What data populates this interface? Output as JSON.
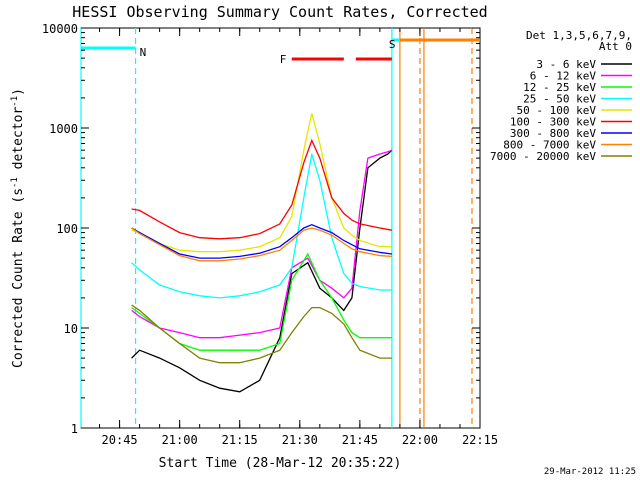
{
  "chart_data": {
    "type": "line",
    "title": "HESSI Observing Summary Count Rates, Corrected",
    "xlabel": "Start Time (28-Mar-12 20:35:22)",
    "ylabel": "Corrected Count Rate (s⁻¹ detector⁻¹)",
    "ylabel_main": "Corrected Count Rate (s",
    "ylabel_exp1": "-1",
    "ylabel_mid": " detector",
    "ylabel_exp2": "-1",
    "ylabel_end": ")",
    "yscale": "log",
    "ylim": [
      1,
      10000
    ],
    "xlim": [
      "20:35:22",
      "22:15:00"
    ],
    "x_ticks": [
      "20:45",
      "21:00",
      "21:15",
      "21:30",
      "21:45",
      "22:00",
      "22:15"
    ],
    "y_ticks": [
      "1",
      "10",
      "100",
      "1000",
      "10000"
    ],
    "legend_header": [
      "Det 1,3,5,6,7,9,",
      "Att 0"
    ],
    "timestamp": "29-Mar-2012 11:25",
    "grid": false,
    "legend_position": "right",
    "series": [
      {
        "name": "3 - 6 keV",
        "color": "#000000",
        "x": [
          "20:48",
          "20:50",
          "20:55",
          "21:00",
          "21:05",
          "21:10",
          "21:15",
          "21:20",
          "21:25",
          "21:28",
          "21:32",
          "21:35",
          "21:38",
          "21:41",
          "21:43",
          "21:45",
          "21:47",
          "21:50",
          "21:52",
          "21:53"
        ],
        "values": [
          5,
          6,
          5,
          4,
          3,
          2.5,
          2.3,
          3,
          8,
          35,
          45,
          25,
          20,
          15,
          20,
          100,
          400,
          500,
          550,
          600
        ]
      },
      {
        "name": "6 - 12 keV",
        "color": "#ff00ff",
        "x": [
          "20:48",
          "20:50",
          "20:55",
          "21:00",
          "21:05",
          "21:10",
          "21:15",
          "21:20",
          "21:25",
          "21:28",
          "21:32",
          "21:35",
          "21:38",
          "21:41",
          "21:43",
          "21:45",
          "21:47",
          "21:50",
          "21:52",
          "21:53"
        ],
        "values": [
          15,
          13,
          10,
          9,
          8,
          8,
          8.5,
          9,
          10,
          40,
          50,
          30,
          25,
          20,
          25,
          150,
          500,
          550,
          580,
          600
        ]
      },
      {
        "name": "12 - 25 keV",
        "color": "#00ff00",
        "x": [
          "20:48",
          "20:50",
          "20:55",
          "21:00",
          "21:05",
          "21:10",
          "21:15",
          "21:20",
          "21:25",
          "21:28",
          "21:32",
          "21:35",
          "21:38",
          "21:41",
          "21:43",
          "21:45",
          "21:50",
          "21:53"
        ],
        "values": [
          16,
          14,
          10,
          7,
          6,
          6,
          6,
          6,
          7,
          30,
          55,
          30,
          20,
          12,
          9,
          8,
          8,
          8
        ]
      },
      {
        "name": "25 - 50 keV",
        "color": "#00ffff",
        "x": [
          "20:48",
          "20:50",
          "20:55",
          "21:00",
          "21:05",
          "21:10",
          "21:15",
          "21:20",
          "21:25",
          "21:28",
          "21:31",
          "21:33",
          "21:35",
          "21:38",
          "21:41",
          "21:43",
          "21:45",
          "21:50",
          "21:53"
        ],
        "values": [
          45,
          38,
          27,
          23,
          21,
          20,
          21,
          23,
          27,
          40,
          200,
          550,
          300,
          80,
          35,
          28,
          26,
          24,
          24
        ]
      },
      {
        "name": "50 - 100 keV",
        "color": "#e6e600",
        "x": [
          "20:48",
          "20:50",
          "20:55",
          "21:00",
          "21:05",
          "21:10",
          "21:15",
          "21:20",
          "21:25",
          "21:28",
          "21:31",
          "21:33",
          "21:35",
          "21:38",
          "21:41",
          "21:43",
          "21:45",
          "21:50",
          "21:53"
        ],
        "values": [
          95,
          90,
          70,
          60,
          58,
          58,
          60,
          65,
          80,
          130,
          600,
          1400,
          700,
          200,
          100,
          85,
          75,
          65,
          65
        ]
      },
      {
        "name": "100 - 300 keV",
        "color": "#ff0000",
        "x": [
          "20:48",
          "20:50",
          "20:55",
          "21:00",
          "21:05",
          "21:10",
          "21:15",
          "21:20",
          "21:25",
          "21:28",
          "21:31",
          "21:33",
          "21:35",
          "21:38",
          "21:41",
          "21:43",
          "21:45",
          "21:50",
          "21:53"
        ],
        "values": [
          155,
          150,
          115,
          90,
          80,
          78,
          80,
          88,
          110,
          170,
          450,
          750,
          500,
          200,
          140,
          120,
          110,
          100,
          95
        ]
      },
      {
        "name": "300 - 800 keV",
        "color": "#0000ff",
        "x": [
          "20:48",
          "20:50",
          "20:55",
          "21:00",
          "21:05",
          "21:10",
          "21:15",
          "21:20",
          "21:25",
          "21:28",
          "21:31",
          "21:33",
          "21:35",
          "21:38",
          "21:41",
          "21:43",
          "21:45",
          "21:50",
          "21:53"
        ],
        "values": [
          100,
          90,
          70,
          55,
          50,
          50,
          52,
          56,
          65,
          80,
          100,
          108,
          100,
          90,
          75,
          68,
          62,
          57,
          55
        ]
      },
      {
        "name": "800 - 7000 keV",
        "color": "#ff8000",
        "x": [
          "20:48",
          "20:50",
          "20:55",
          "21:00",
          "21:05",
          "21:10",
          "21:15",
          "21:20",
          "21:25",
          "21:28",
          "21:31",
          "21:33",
          "21:35",
          "21:38",
          "21:41",
          "21:43",
          "21:45",
          "21:50",
          "21:53"
        ],
        "values": [
          100,
          88,
          68,
          53,
          47,
          47,
          49,
          53,
          60,
          75,
          95,
          100,
          95,
          85,
          70,
          62,
          58,
          53,
          52
        ]
      },
      {
        "name": "7000 - 20000 keV",
        "color": "#808000",
        "x": [
          "20:48",
          "20:50",
          "20:55",
          "21:00",
          "21:05",
          "21:10",
          "21:15",
          "21:20",
          "21:25",
          "21:28",
          "21:31",
          "21:33",
          "21:35",
          "21:38",
          "21:41",
          "21:43",
          "21:45",
          "21:50",
          "21:53"
        ],
        "values": [
          17,
          15,
          10,
          7,
          5,
          4.5,
          4.5,
          5,
          6,
          9,
          13,
          16,
          16,
          14,
          11,
          8,
          6,
          5,
          5
        ]
      }
    ],
    "flags": [
      {
        "label": "N",
        "color": "#00ffff",
        "start": "20:35:22",
        "end": "20:49:00"
      },
      {
        "label": "F",
        "color": "#ff0000",
        "segments": [
          [
            "21:28",
            "21:41"
          ],
          [
            "21:44",
            "21:53"
          ]
        ]
      },
      {
        "label": "S",
        "color": "#00ffff",
        "start": "21:53",
        "end": "22:13"
      },
      {
        "label": "",
        "color": "#ff8000",
        "start": "21:55",
        "end": "22:15"
      }
    ],
    "vertical_lines": [
      {
        "x": "20:35:22",
        "color": "#00ffff",
        "style": "solid"
      },
      {
        "x": "20:49",
        "color": "#00ffff",
        "style": "dashed"
      },
      {
        "x": "21:53",
        "color": "#00ffff",
        "style": "solid"
      },
      {
        "x": "21:55",
        "color": "#ff8000",
        "style": "solid"
      },
      {
        "x": "22:00",
        "color": "#ff8000",
        "style": "dashed"
      },
      {
        "x": "22:01",
        "color": "#ff8000",
        "style": "solid"
      },
      {
        "x": "22:13",
        "color": "#ff8000",
        "style": "dashed"
      }
    ]
  }
}
